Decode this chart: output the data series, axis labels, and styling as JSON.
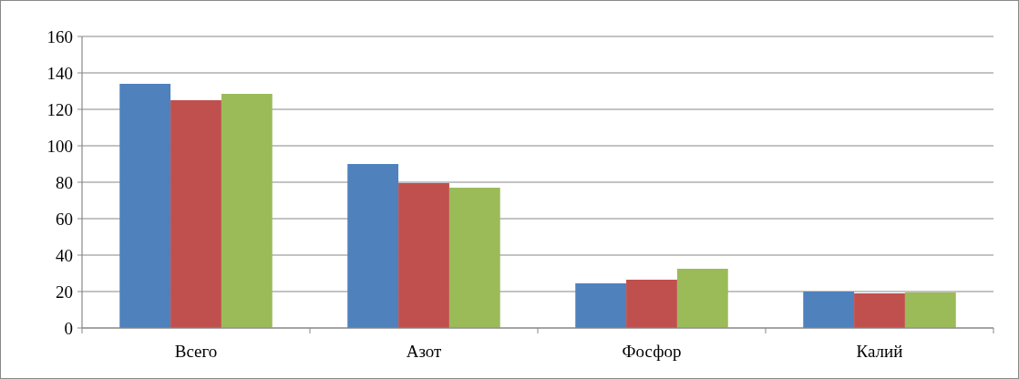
{
  "chart_data": {
    "type": "bar",
    "categories": [
      "Всего",
      "Азот",
      "Фосфор",
      "Калий"
    ],
    "series": [
      {
        "color": "#4f81bd",
        "values": [
          134,
          90,
          24.5,
          20
        ]
      },
      {
        "color": "#c0504d",
        "values": [
          125,
          79.5,
          26.5,
          19
        ]
      },
      {
        "color": "#9bbb59",
        "values": [
          128.5,
          77,
          32.5,
          19.5
        ]
      }
    ],
    "ylim": [
      0,
      160
    ],
    "yticks": [
      0,
      20,
      40,
      60,
      80,
      100,
      120,
      140,
      160
    ],
    "grid": "y"
  }
}
